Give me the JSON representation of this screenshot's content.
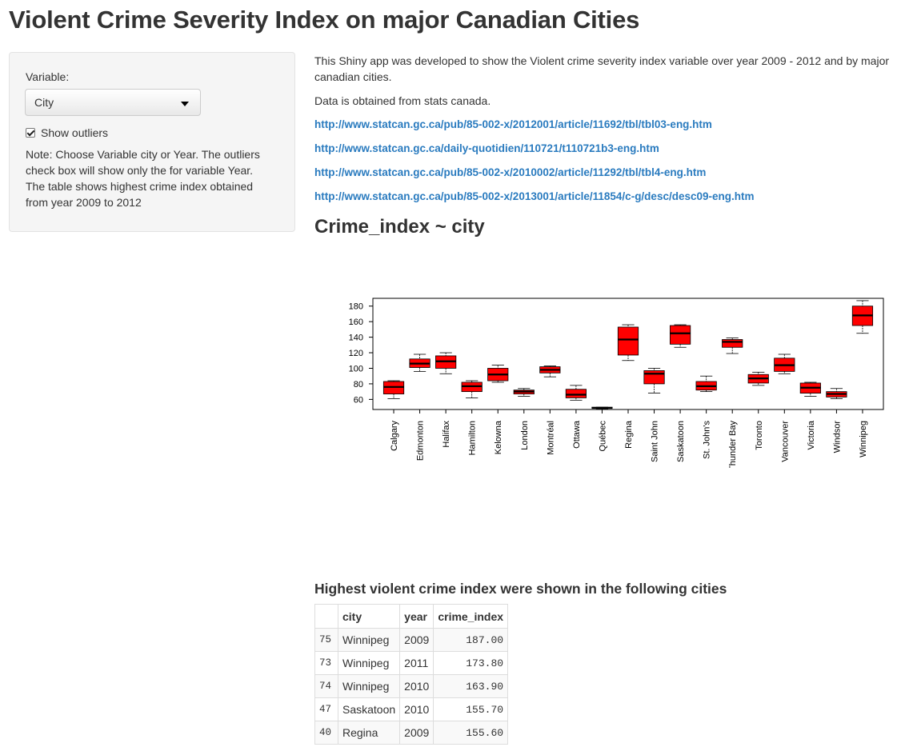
{
  "page_title": "Violent Crime Severity Index on major Canadian Cities",
  "sidebar": {
    "variable_label": "Variable:",
    "variable_selected": "City",
    "outliers_label": "Show outliers",
    "outliers_checked": true,
    "note": "Note: Choose Variable city or Year. The outliers check box will show only the for variable Year. The table shows highest crime index obtained from year 2009 to 2012"
  },
  "main": {
    "intro": "This Shiny app was developed to show the Violent crime severity index variable over year 2009 - 2012 and by major canadian cities.",
    "source": "Data is obtained from stats canada.",
    "links": [
      "http://www.statcan.gc.ca/pub/85-002-x/2012001/article/11692/tbl/tbl03-eng.htm",
      "http://www.statcan.gc.ca/daily-quotidien/110721/t110721b3-eng.htm",
      "http://www.statcan.gc.ca/pub/85-002-x/2010002/article/11292/tbl/tbl4-eng.htm",
      "http://www.statcan.gc.ca/pub/85-002-x/2013001/article/11854/c-g/desc/desc09-eng.htm"
    ],
    "plot_heading": "Crime_index ~ city",
    "table_heading": "Highest violent crime index were shown in the following cities"
  },
  "chart_data": {
    "type": "box",
    "fill_color": "#ff0000",
    "y_ticks": [
      60,
      80,
      100,
      120,
      140,
      160,
      180
    ],
    "ylim": [
      47,
      190
    ],
    "categories": [
      "Calgary",
      "Edmonton",
      "Halifax",
      "Hamilton",
      "Kelowna",
      "London",
      "Montréal",
      "Ottawa",
      "Québec",
      "Regina",
      "Saint John",
      "Saskatoon",
      "St. John's",
      "Thunder Bay",
      "Toronto",
      "Vancouver",
      "Victoria",
      "Windsor",
      "Winnipeg"
    ],
    "boxes": [
      {
        "min": 61,
        "q1": 67,
        "median": 76,
        "q3": 83,
        "max": 84
      },
      {
        "min": 96,
        "q1": 101,
        "median": 106,
        "q3": 112,
        "max": 118
      },
      {
        "min": 93,
        "q1": 100,
        "median": 109,
        "q3": 116,
        "max": 120
      },
      {
        "min": 62,
        "q1": 70,
        "median": 77,
        "q3": 82,
        "max": 84
      },
      {
        "min": 82,
        "q1": 84,
        "median": 92,
        "q3": 100,
        "max": 104
      },
      {
        "min": 64,
        "q1": 67,
        "median": 70,
        "q3": 72,
        "max": 74
      },
      {
        "min": 89,
        "q1": 94,
        "median": 98,
        "q3": 102,
        "max": 103
      },
      {
        "min": 59,
        "q1": 62,
        "median": 66,
        "q3": 73,
        "max": 78
      },
      {
        "min": 48,
        "q1": 48.5,
        "median": 49,
        "q3": 50,
        "max": 50
      },
      {
        "min": 110,
        "q1": 117,
        "median": 137,
        "q3": 153,
        "max": 156
      },
      {
        "min": 68,
        "q1": 80,
        "median": 93,
        "q3": 97,
        "max": 100
      },
      {
        "min": 127,
        "q1": 131,
        "median": 145,
        "q3": 155,
        "max": 156
      },
      {
        "min": 70,
        "q1": 72,
        "median": 77,
        "q3": 83,
        "max": 90
      },
      {
        "min": 119,
        "q1": 127,
        "median": 134,
        "q3": 137,
        "max": 139
      },
      {
        "min": 78,
        "q1": 81,
        "median": 87,
        "q3": 92,
        "max": 95
      },
      {
        "min": 93,
        "q1": 96,
        "median": 104,
        "q3": 113,
        "max": 118
      },
      {
        "min": 64,
        "q1": 68,
        "median": 75,
        "q3": 81,
        "max": 82
      },
      {
        "min": 61,
        "q1": 63,
        "median": 67,
        "q3": 70,
        "max": 74
      },
      {
        "min": 145,
        "q1": 155,
        "median": 168,
        "q3": 180,
        "max": 187
      }
    ]
  },
  "table": {
    "headers": [
      "",
      "city",
      "year",
      "crime_index"
    ],
    "rows": [
      {
        "rn": "75",
        "city": "Winnipeg",
        "year": "2009",
        "crime_index": "187.00"
      },
      {
        "rn": "73",
        "city": "Winnipeg",
        "year": "2011",
        "crime_index": "173.80"
      },
      {
        "rn": "74",
        "city": "Winnipeg",
        "year": "2010",
        "crime_index": "163.90"
      },
      {
        "rn": "47",
        "city": "Saskatoon",
        "year": "2010",
        "crime_index": "155.70"
      },
      {
        "rn": "40",
        "city": "Regina",
        "year": "2009",
        "crime_index": "155.60"
      }
    ]
  }
}
